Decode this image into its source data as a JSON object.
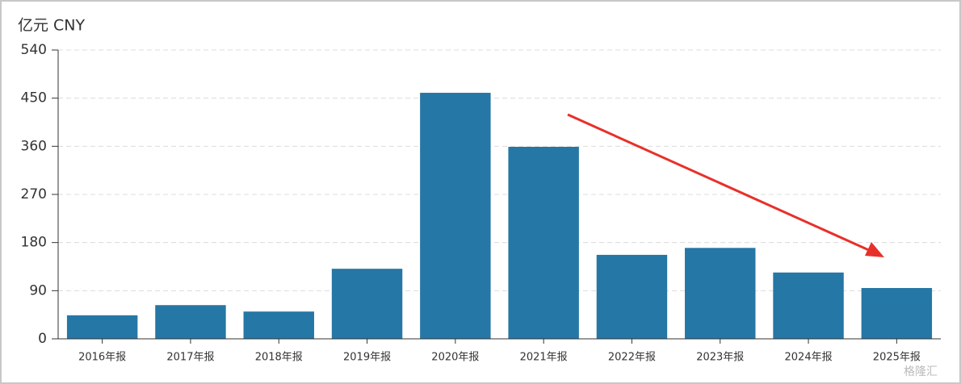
{
  "chart_data": {
    "type": "bar",
    "y_label": "亿元 CNY",
    "categories": [
      "2016年报",
      "2017年报",
      "2018年报",
      "2019年报",
      "2020年报",
      "2021年报",
      "2022年报",
      "2023年报",
      "2024年报",
      "2025年报"
    ],
    "values": [
      44,
      63,
      51,
      131,
      460,
      359,
      157,
      170,
      124,
      95
    ],
    "color": "#2577a5",
    "ylim": [
      0,
      540
    ],
    "yticks": [
      0,
      90,
      180,
      270,
      360,
      450,
      540
    ],
    "grid": true,
    "watermark": "格隆汇"
  }
}
